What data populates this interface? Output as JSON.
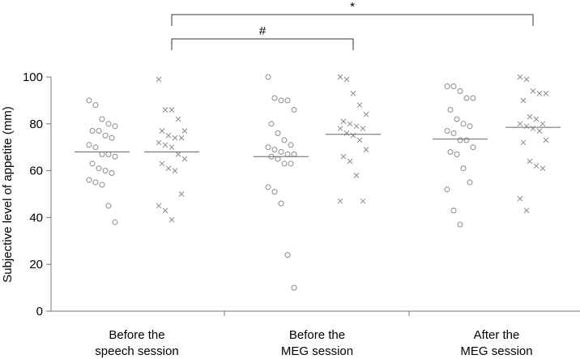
{
  "chart_data": {
    "type": "scatter",
    "ylabel": "Subjective level of appetite (mm)",
    "ylim": [
      0,
      100
    ],
    "yticks": [
      0,
      20,
      40,
      60,
      80,
      100
    ],
    "grid": false,
    "groups": [
      {
        "label_lines": [
          "Before the",
          "speech session"
        ]
      },
      {
        "label_lines": [
          "Before the",
          "MEG session"
        ]
      },
      {
        "label_lines": [
          "After the",
          "MEG session"
        ]
      }
    ],
    "series": [
      {
        "marker": "circle",
        "group_values": [
          [
            90,
            88,
            82,
            80,
            79,
            77,
            77,
            75,
            74,
            71,
            70,
            67,
            67,
            66,
            63,
            61,
            60,
            59,
            56,
            55,
            54,
            45,
            38
          ],
          [
            100,
            91,
            90,
            90,
            86,
            80,
            76,
            73,
            71,
            70,
            69,
            68,
            67,
            67,
            66,
            65,
            63,
            63,
            53,
            51,
            46,
            24,
            10
          ],
          [
            96,
            96,
            94,
            91,
            91,
            86,
            82,
            80,
            79,
            77,
            76,
            73,
            73,
            70,
            68,
            67,
            61,
            55,
            52,
            43,
            37
          ]
        ],
        "means": [
          68,
          66,
          73.5
        ]
      },
      {
        "marker": "cross",
        "group_values": [
          [
            99,
            86,
            86,
            82,
            77,
            77,
            75,
            74,
            74,
            72,
            71,
            70,
            67,
            65,
            63,
            61,
            60,
            50,
            45,
            43,
            39
          ],
          [
            100,
            99,
            93,
            88,
            84,
            81,
            80,
            79,
            78,
            78,
            76,
            75,
            73,
            69,
            66,
            64,
            58,
            47,
            47
          ],
          [
            100,
            99,
            94,
            93,
            93,
            90,
            83,
            82,
            80,
            80,
            79,
            78,
            77,
            73,
            72,
            64,
            62,
            61,
            48,
            43
          ]
        ],
        "means": [
          68,
          75.5,
          78.5
        ]
      }
    ],
    "annotations": [
      {
        "from_series": 1,
        "from_group": 0,
        "to_series": 1,
        "to_group": 2,
        "label": "*"
      },
      {
        "from_series": 1,
        "from_group": 0,
        "to_series": 1,
        "to_group": 1,
        "label": "#"
      }
    ]
  }
}
